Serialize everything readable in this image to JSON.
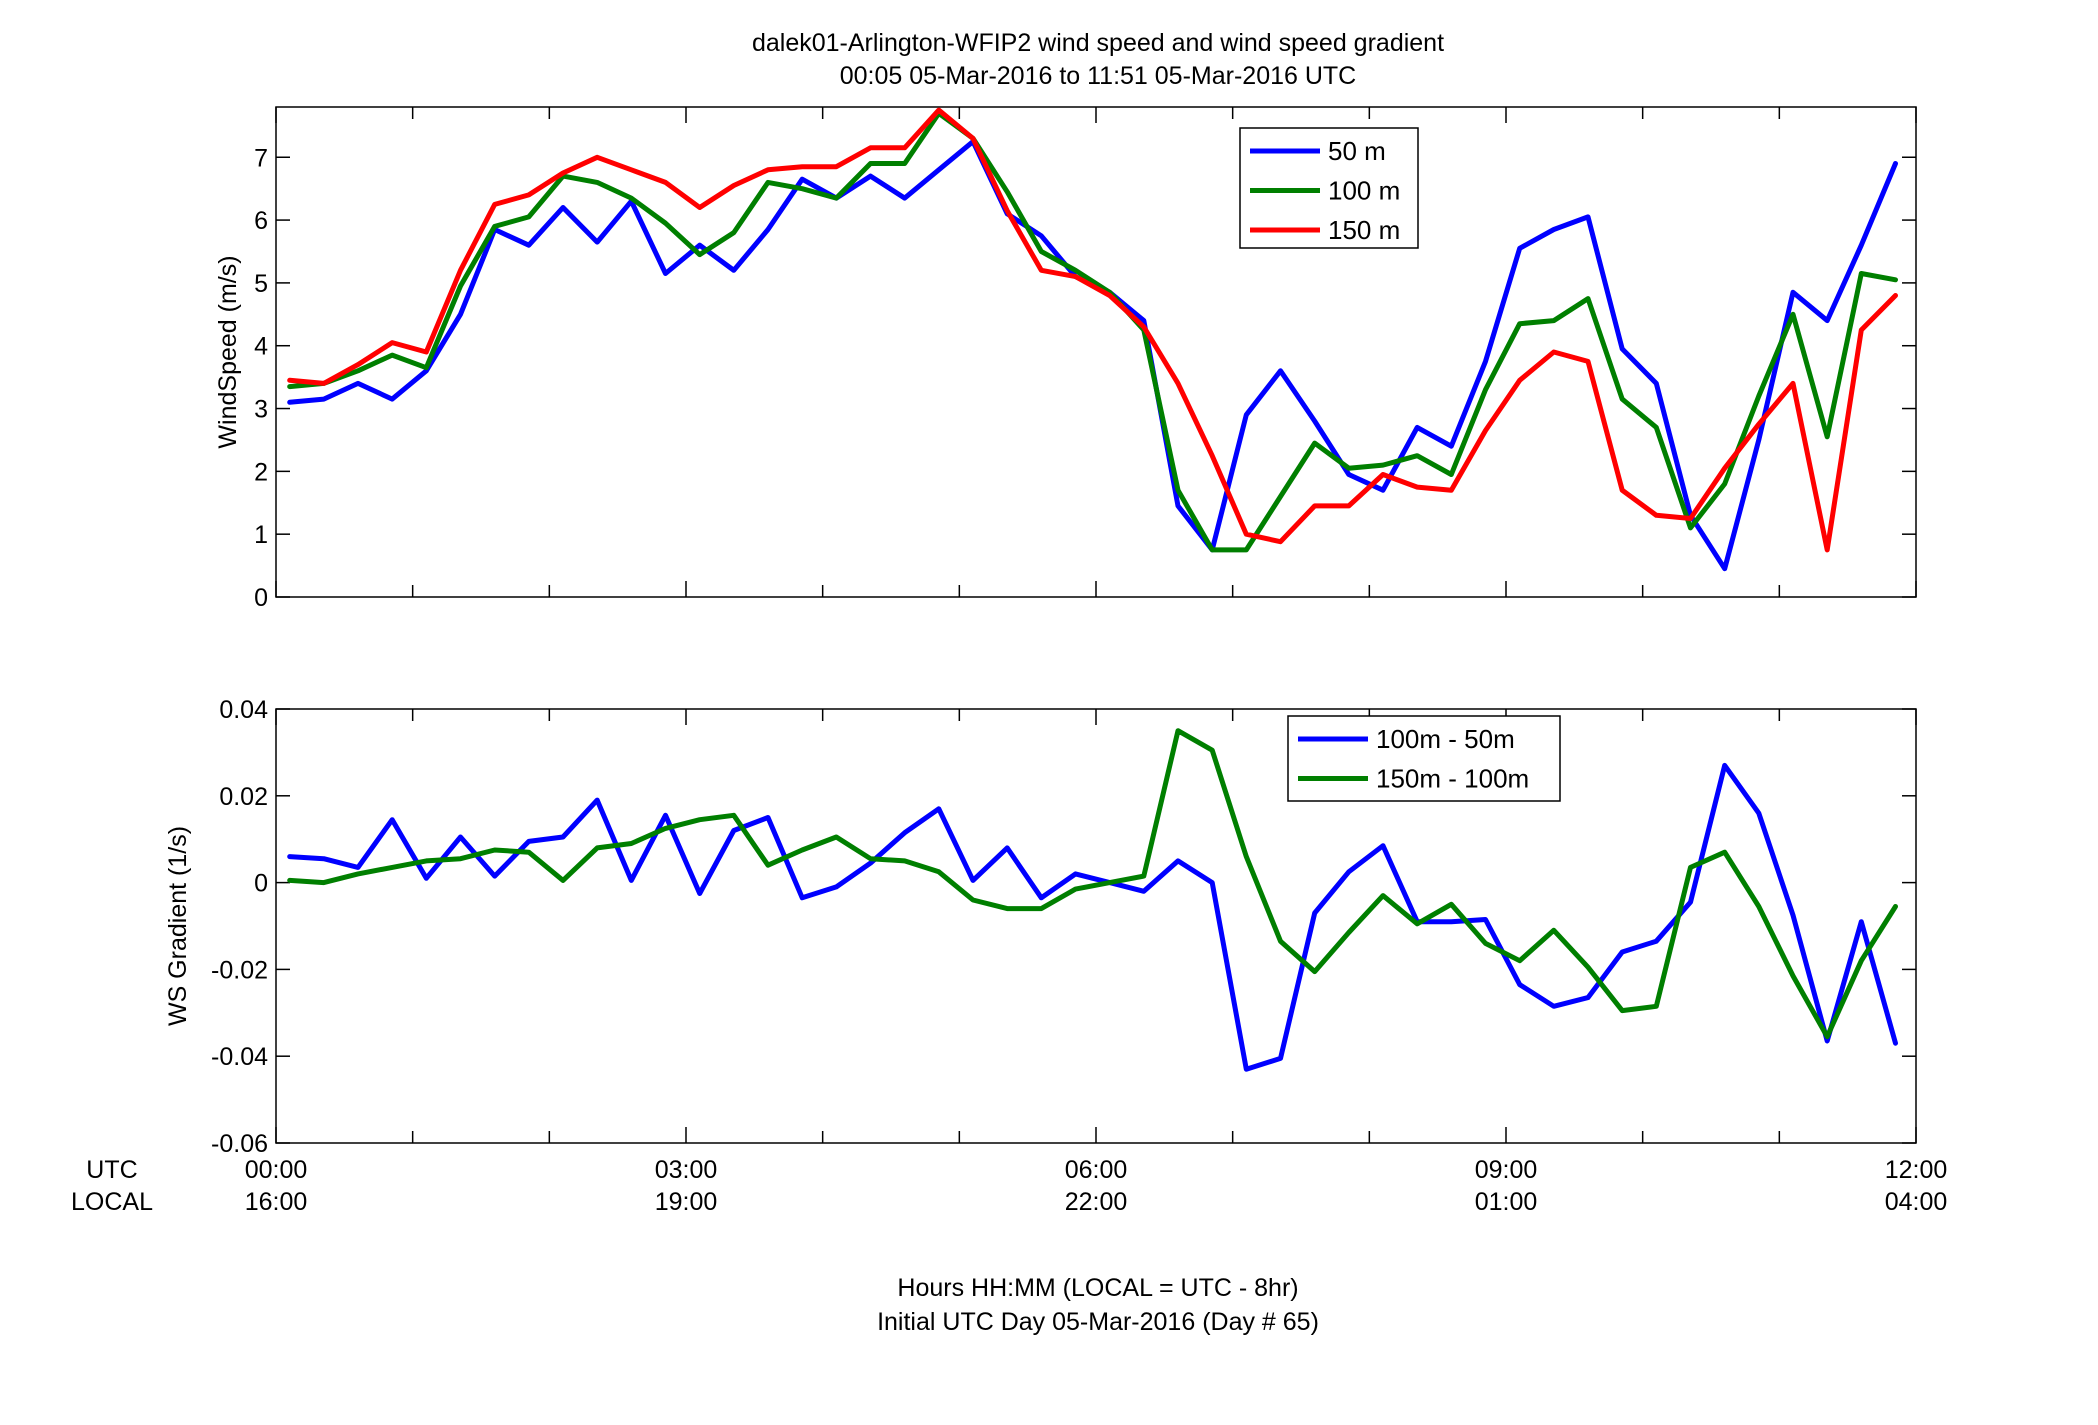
{
  "figure": {
    "title_line1": "dalek01-Arlington-WFIP2  wind speed and wind speed gradient",
    "title_line2": "00:05 05-Mar-2016 to 11:51 05-Mar-2016  UTC",
    "xrow_utc_label": "UTC",
    "xrow_local_label": "LOCAL",
    "xlabel_line1": "Hours HH:MM  (LOCAL = UTC - 8hr)",
    "xlabel_line2": "Initial UTC Day 05-Mar-2016 (Day # 65)",
    "utc_ticks": [
      "00:00",
      "03:00",
      "06:00",
      "09:00",
      "12:00"
    ],
    "local_ticks": [
      "16:00",
      "19:00",
      "22:00",
      "01:00",
      "04:00"
    ]
  },
  "chart_data": [
    {
      "type": "line",
      "ylabel": "WindSpeed (m/s)",
      "xlim": [
        0,
        12
      ],
      "ylim": [
        0,
        7.8
      ],
      "yticks": [
        0,
        1,
        2,
        3,
        4,
        5,
        6,
        7
      ],
      "x_units": "hours UTC",
      "x": [
        0.1,
        0.35,
        0.6,
        0.85,
        1.1,
        1.35,
        1.6,
        1.85,
        2.1,
        2.35,
        2.6,
        2.85,
        3.1,
        3.35,
        3.6,
        3.85,
        4.1,
        4.35,
        4.6,
        4.85,
        5.1,
        5.35,
        5.6,
        5.85,
        6.1,
        6.35,
        6.6,
        6.85,
        7.1,
        7.35,
        7.6,
        7.85,
        8.1,
        8.35,
        8.6,
        8.85,
        9.1,
        9.35,
        9.6,
        9.85,
        10.1,
        10.35,
        10.6,
        10.85,
        11.1,
        11.35,
        11.6,
        11.85
      ],
      "legend_position": "upper-right",
      "series": [
        {
          "name": "50 m",
          "color": "#0000ff",
          "values": [
            3.1,
            3.15,
            3.4,
            3.15,
            3.6,
            4.5,
            5.85,
            5.6,
            6.2,
            5.65,
            6.3,
            5.15,
            5.6,
            5.2,
            5.85,
            6.65,
            6.35,
            6.7,
            6.35,
            6.8,
            7.25,
            6.1,
            5.75,
            5.1,
            4.85,
            4.4,
            1.45,
            0.75,
            2.9,
            3.6,
            2.8,
            1.95,
            1.7,
            2.7,
            2.4,
            3.75,
            5.55,
            5.85,
            6.05,
            3.95,
            3.4,
            1.3,
            0.45,
            2.5,
            4.85,
            4.4,
            5.6,
            6.9
          ]
        },
        {
          "name": "100 m",
          "color": "#007f00",
          "values": [
            3.35,
            3.4,
            3.6,
            3.85,
            3.65,
            4.95,
            5.9,
            6.05,
            6.7,
            6.6,
            6.35,
            5.95,
            5.45,
            5.8,
            6.6,
            6.5,
            6.35,
            6.9,
            6.9,
            7.7,
            7.3,
            6.45,
            5.5,
            5.2,
            4.85,
            4.25,
            1.7,
            0.75,
            0.75,
            1.6,
            2.45,
            2.05,
            2.1,
            2.25,
            1.95,
            3.3,
            4.35,
            4.4,
            4.75,
            3.15,
            2.7,
            1.1,
            1.8,
            3.2,
            4.5,
            2.55,
            5.15,
            5.05
          ]
        },
        {
          "name": "150 m",
          "color": "#ff0000",
          "values": [
            3.45,
            3.4,
            3.7,
            4.05,
            3.9,
            5.2,
            6.25,
            6.4,
            6.75,
            7.0,
            6.8,
            6.6,
            6.2,
            6.55,
            6.8,
            6.85,
            6.85,
            7.15,
            7.15,
            7.75,
            7.3,
            6.15,
            5.2,
            5.1,
            4.8,
            4.3,
            3.4,
            2.25,
            1.0,
            0.88,
            1.45,
            1.45,
            1.95,
            1.75,
            1.7,
            2.65,
            3.45,
            3.9,
            3.75,
            1.7,
            1.3,
            1.25,
            2.05,
            2.75,
            3.4,
            0.75,
            4.25,
            4.8
          ]
        }
      ]
    },
    {
      "type": "line",
      "ylabel": "WS Gradient (1/s)",
      "xlim": [
        0,
        12
      ],
      "ylim": [
        -0.06,
        0.04
      ],
      "yticks": [
        -0.06,
        -0.04,
        -0.02,
        0,
        0.02,
        0.04
      ],
      "ytick_labels": [
        "-0.06",
        "-0.04",
        "-0.02",
        "0",
        "0.02",
        "0.04"
      ],
      "x_units": "hours UTC",
      "x": [
        0.1,
        0.35,
        0.6,
        0.85,
        1.1,
        1.35,
        1.6,
        1.85,
        2.1,
        2.35,
        2.6,
        2.85,
        3.1,
        3.35,
        3.6,
        3.85,
        4.1,
        4.35,
        4.6,
        4.85,
        5.1,
        5.35,
        5.6,
        5.85,
        6.1,
        6.35,
        6.6,
        6.85,
        7.1,
        7.35,
        7.6,
        7.85,
        8.1,
        8.35,
        8.6,
        8.85,
        9.1,
        9.35,
        9.6,
        9.85,
        10.1,
        10.35,
        10.6,
        10.85,
        11.1,
        11.35,
        11.6,
        11.85
      ],
      "legend_position": "upper-center-right",
      "series": [
        {
          "name": "100m - 50m",
          "color": "#0000ff",
          "values": [
            0.006,
            0.0055,
            0.0035,
            0.0145,
            0.001,
            0.0105,
            0.0015,
            0.0095,
            0.0105,
            0.019,
            0.0005,
            0.0155,
            -0.0025,
            0.012,
            0.015,
            -0.0035,
            -0.001,
            0.0045,
            0.0115,
            0.017,
            0.0005,
            0.008,
            -0.0035,
            0.002,
            0.0,
            -0.002,
            0.005,
            0.0,
            -0.043,
            -0.0405,
            -0.007,
            0.0025,
            0.0085,
            -0.009,
            -0.009,
            -0.0085,
            -0.0235,
            -0.0285,
            -0.0265,
            -0.016,
            -0.0135,
            -0.0045,
            0.027,
            0.016,
            -0.0075,
            -0.0365,
            -0.009,
            -0.037
          ]
        },
        {
          "name": "150m - 100m",
          "color": "#007f00",
          "values": [
            0.0005,
            0.0,
            0.002,
            0.0035,
            0.005,
            0.0055,
            0.0075,
            0.007,
            0.0005,
            0.008,
            0.009,
            0.0125,
            0.0145,
            0.0155,
            0.004,
            0.0075,
            0.0105,
            0.0055,
            0.005,
            0.0025,
            -0.004,
            -0.006,
            -0.006,
            -0.0015,
            0.0,
            0.0015,
            0.035,
            0.0305,
            0.006,
            -0.0135,
            -0.0205,
            -0.0115,
            -0.003,
            -0.0095,
            -0.005,
            -0.014,
            -0.018,
            -0.011,
            -0.0195,
            -0.0295,
            -0.0285,
            0.0035,
            0.007,
            -0.0055,
            -0.0215,
            -0.0355,
            -0.018,
            -0.0055
          ]
        }
      ]
    }
  ]
}
